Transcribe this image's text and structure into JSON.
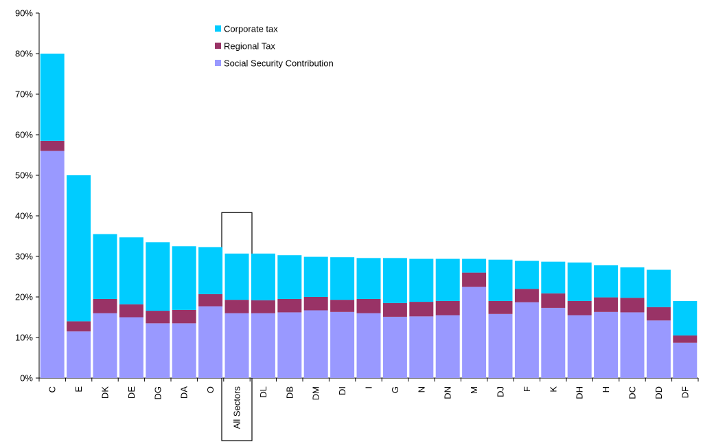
{
  "chart_data": {
    "type": "bar",
    "stacked": true,
    "title": "",
    "xlabel": "",
    "ylabel": "",
    "ylim": [
      0,
      90
    ],
    "y_tick_labels": [
      "0%",
      "10%",
      "20%",
      "30%",
      "40%",
      "50%",
      "60%",
      "70%",
      "80%",
      "90%"
    ],
    "y_ticks": [
      0,
      10,
      20,
      30,
      40,
      50,
      60,
      70,
      80,
      90
    ],
    "grid": false,
    "legend_position": "top-center",
    "highlighted_category": "All Sectors",
    "categories": [
      "C",
      "E",
      "DK",
      "DE",
      "DG",
      "DA",
      "O",
      "All Sectors",
      "DL",
      "DB",
      "DM",
      "DI",
      "I",
      "G",
      "N",
      "DN",
      "M",
      "DJ",
      "F",
      "K",
      "DH",
      "H",
      "DC",
      "DD",
      "DF"
    ],
    "series": [
      {
        "name": "Social Security Contribution",
        "color": "#9999ff",
        "values": [
          56,
          11.5,
          16,
          15,
          13.5,
          13.5,
          17.7,
          16,
          16,
          16.2,
          16.7,
          16.3,
          16,
          15.1,
          15.2,
          15.5,
          22.5,
          15.8,
          18.7,
          17.3,
          15.5,
          16.3,
          16.2,
          14.2,
          8.7
        ]
      },
      {
        "name": "Regional Tax",
        "color": "#993366",
        "values": [
          2.5,
          2.5,
          3.5,
          3.2,
          3.1,
          3.3,
          3,
          3.3,
          3.2,
          3.3,
          3.3,
          3,
          3.5,
          3.4,
          3.6,
          3.5,
          3.5,
          3.2,
          3.3,
          3.6,
          3.5,
          3.6,
          3.6,
          3.3,
          1.8
        ]
      },
      {
        "name": "Corporate tax",
        "color": "#00ccff",
        "values": [
          21.5,
          36,
          16,
          16.5,
          16.9,
          15.7,
          11.6,
          11.4,
          11.5,
          10.8,
          9.9,
          10.5,
          10.1,
          11.1,
          10.6,
          10.4,
          3.4,
          10.2,
          6.9,
          7.8,
          9.5,
          7.9,
          7.5,
          9.2,
          8.5
        ]
      }
    ],
    "legend_order": [
      "Corporate tax",
      "Regional Tax",
      "Social Security Contribution"
    ]
  }
}
